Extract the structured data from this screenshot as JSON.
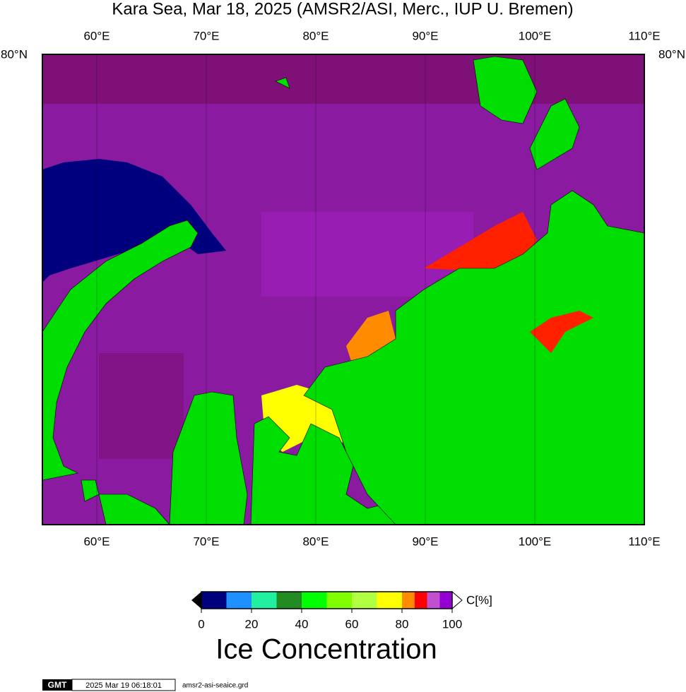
{
  "header": {
    "title": "Kara Sea, Mar 18, 2025 (AMSR2/ASI, Merc., IUP U. Bremen)"
  },
  "map": {
    "lon_labels": [
      "60°E",
      "70°E",
      "80°E",
      "90°E",
      "100°E",
      "110°E"
    ],
    "lat_label": "80°N"
  },
  "colorbar": {
    "bounds": [
      0,
      10,
      20,
      30,
      40,
      50,
      60,
      70,
      80,
      85,
      90,
      95,
      100
    ],
    "colors": [
      "#00007f",
      "#1e90ff",
      "#20f0a0",
      "#228b22",
      "#00ff00",
      "#7fff00",
      "#b0ff40",
      "#ffff00",
      "#ff8c00",
      "#ff0000",
      "#c050d0",
      "#9400d3"
    ],
    "ticks": [
      0,
      20,
      40,
      60,
      80,
      100
    ],
    "unit": "C[%]",
    "title": "Ice Concentration"
  },
  "footer": {
    "logo": "GMT",
    "timestamp": "2025 Mar 19 06:18:01",
    "file": "amsr2-asi-seaice.grd"
  }
}
